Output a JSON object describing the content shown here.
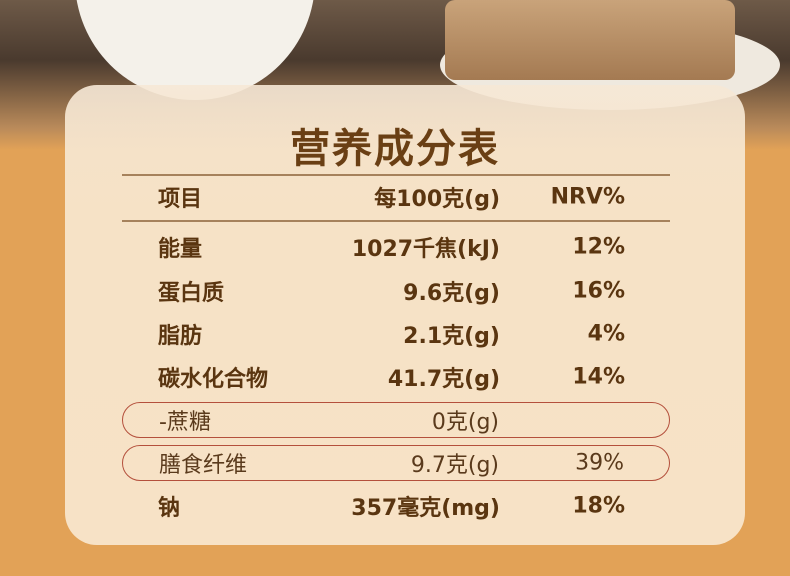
{
  "title": "营养成分表",
  "header": {
    "item": "项目",
    "per100": "每100克(g)",
    "nrv": "NRV%"
  },
  "rows": [
    {
      "item": "能量",
      "per100": "1027千焦(kJ)",
      "nrv": "12%"
    },
    {
      "item": "蛋白质",
      "per100": "9.6克(g)",
      "nrv": "16%"
    },
    {
      "item": "脂肪",
      "per100": "2.1克(g)",
      "nrv": "4%"
    },
    {
      "item": "碳水化合物",
      "per100": "41.7克(g)",
      "nrv": "14%"
    },
    {
      "item": "-蔗糖",
      "per100": "0克(g)",
      "nrv": ""
    },
    {
      "item": "膳食纤维",
      "per100": "9.7克(g)",
      "nrv": "39%"
    },
    {
      "item": "钠",
      "per100": "357毫克(mg)",
      "nrv": "18%"
    }
  ],
  "colors": {
    "background": "#e2a257",
    "card": "#f7e2c6",
    "text": "#6a3f14",
    "highlight_border": "#b4503c"
  }
}
